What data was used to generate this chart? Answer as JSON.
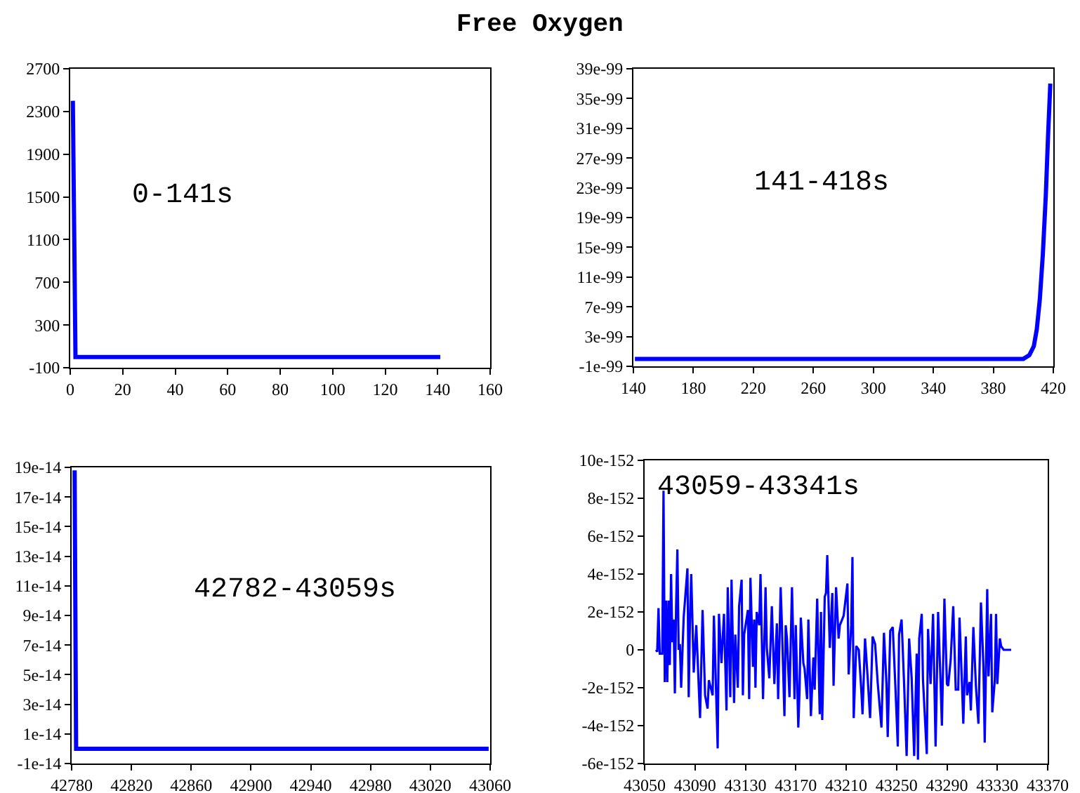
{
  "chart_data": [
    {
      "type": "line",
      "title": "Free Oxygen",
      "annotations": [
        "0-141s"
      ],
      "x": [
        1,
        2,
        141
      ],
      "series": [
        {
          "color": "#0000ff",
          "values": [
            2400,
            0,
            0
          ]
        }
      ],
      "xlim": [
        0,
        160
      ],
      "xticks": [
        0,
        20,
        40,
        60,
        80,
        100,
        120,
        140,
        160
      ],
      "ylim": [
        -100,
        2700
      ],
      "yticks": [
        -100,
        300,
        700,
        1100,
        1500,
        1900,
        2300,
        2700
      ]
    },
    {
      "type": "line",
      "annotations": [
        "141-418s"
      ],
      "x": [
        141,
        400,
        404,
        407,
        409,
        411,
        413,
        415,
        416.5,
        418
      ],
      "series": [
        {
          "color": "#0000ff",
          "values": [
            0,
            0,
            5e-100,
            1.7e-99,
            4e-99,
            8e-99,
            1.4e-98,
            2.2e-98,
            3e-98,
            3.7e-98
          ]
        }
      ],
      "xlim": [
        140,
        420
      ],
      "xticks": [
        140,
        180,
        220,
        260,
        300,
        340,
        380,
        420
      ],
      "ylim": [
        -1e-99,
        3.9e-98
      ],
      "yticks": [
        {
          "value": -1e-99,
          "label": "-1e-99"
        },
        {
          "value": 3e-99,
          "label": "3e-99"
        },
        {
          "value": 7e-99,
          "label": "7e-99"
        },
        {
          "value": 1.1e-98,
          "label": "11e-99"
        },
        {
          "value": 1.5e-98,
          "label": "15e-99"
        },
        {
          "value": 1.9e-98,
          "label": "19e-99"
        },
        {
          "value": 2.3e-98,
          "label": "23e-99"
        },
        {
          "value": 2.7e-98,
          "label": "27e-99"
        },
        {
          "value": 3.1e-98,
          "label": "31e-99"
        },
        {
          "value": 3.5e-98,
          "label": "35e-99"
        },
        {
          "value": 3.9e-98,
          "label": "39e-99"
        }
      ]
    },
    {
      "type": "line",
      "annotations": [
        "42782-43059s"
      ],
      "x": [
        42782,
        42783,
        43059
      ],
      "series": [
        {
          "color": "#0000ff",
          "values": [
            1.88e-13,
            0,
            0
          ]
        }
      ],
      "xlim": [
        42780,
        43060
      ],
      "xticks": [
        42780,
        42820,
        42860,
        42900,
        42940,
        42980,
        43020,
        43060
      ],
      "ylim": [
        -1e-14,
        1.9e-13
      ],
      "yticks": [
        {
          "value": -1e-14,
          "label": "-1e-14"
        },
        {
          "value": 1e-14,
          "label": "1e-14"
        },
        {
          "value": 3e-14,
          "label": "3e-14"
        },
        {
          "value": 5e-14,
          "label": "5e-14"
        },
        {
          "value": 7e-14,
          "label": "7e-14"
        },
        {
          "value": 9e-14,
          "label": "9e-14"
        },
        {
          "value": 1.1e-13,
          "label": "11e-14"
        },
        {
          "value": 1.3e-13,
          "label": "13e-14"
        },
        {
          "value": 1.5e-13,
          "label": "15e-14"
        },
        {
          "value": 1.7e-13,
          "label": "17e-14"
        },
        {
          "value": 1.9e-13,
          "label": "19e-14"
        }
      ]
    },
    {
      "type": "line",
      "annotations": [
        "43059-43341s"
      ],
      "x": [
        43059,
        43060,
        43061,
        43062,
        43064,
        43065,
        43066,
        43067,
        43068,
        43069,
        43070,
        43071,
        43072,
        43073,
        43074,
        43075,
        43076,
        43077,
        43078,
        43079,
        43081,
        43084,
        43085,
        43086,
        43087,
        43089,
        43091,
        43093,
        43094,
        43096,
        43098,
        43100,
        43101,
        43104,
        43105,
        43107,
        43108,
        43109,
        43111,
        43113,
        43115,
        43116,
        43118,
        43119,
        43121,
        43122,
        43124,
        43125,
        43127,
        43128,
        43129,
        43132,
        43133,
        43134,
        43136,
        43137,
        43138,
        43139,
        43141,
        43142,
        43144,
        43146,
        43147,
        43149,
        43151,
        43153,
        43155,
        43156,
        43158,
        43159,
        43161,
        43162,
        43163,
        43165,
        43167,
        43169,
        43170,
        43172,
        43173,
        43174,
        43176,
        43177,
        43179,
        43180,
        43182,
        43184,
        43185,
        43187,
        43189,
        43190,
        43191,
        43193,
        43194,
        43195,
        43197,
        43199,
        43200,
        43202,
        43204,
        43205,
        43208,
        43211,
        43212,
        43214,
        43215,
        43216,
        43218,
        43220,
        43222,
        43223,
        43225,
        43227,
        43229,
        43231,
        43233,
        43235,
        43238,
        43240,
        43242,
        43243,
        43245,
        43247,
        43249,
        43251,
        43252,
        43254,
        43256,
        43258,
        43260,
        43262,
        43264,
        43266,
        43267,
        43268,
        43270,
        43271,
        43274,
        43275,
        43277,
        43279,
        43281,
        43283,
        43285,
        43286,
        43288,
        43290,
        43291,
        43293,
        43295,
        43297,
        43299,
        43300,
        43302,
        43303,
        43305,
        43306,
        43308,
        43309,
        43311,
        43313,
        43315,
        43317,
        43319,
        43320,
        43322,
        43323,
        43325,
        43326,
        43328,
        43329,
        43330,
        43332,
        43333,
        43335,
        43341
      ],
      "series": [
        {
          "color": "#0000ff",
          "values": [
            0,
            -1e-153,
            2.2e-152,
            -2e-153,
            -2e-153,
            8.4e-152,
            -1.7e-152,
            2.6e-152,
            -1.7e-152,
            2.6e-152,
            -8e-153,
            4e-152,
            4e-153,
            1.6e-152,
            -2.3e-152,
            2.3e-152,
            5.3e-152,
            0,
            3e-153,
            -2e-152,
            1.7e-152,
            4.3e-152,
            -2.5e-152,
            1.6e-152,
            4e-152,
            -1.2e-152,
            1.3e-152,
            -2e-152,
            -3.6e-152,
            2.1e-152,
            -2.4e-152,
            -3.1e-152,
            -1.6e-152,
            -2.4e-152,
            1.8e-152,
            -2.8e-152,
            -5.2e-152,
            1.9e-152,
            -7e-153,
            1.9e-152,
            -3.2e-152,
            3.3e-152,
            -2.5e-152,
            3.7e-152,
            -2.8e-152,
            8e-153,
            -2e-152,
            2.3e-152,
            3.7e-152,
            -2.4e-152,
            8e-153,
            2.1e-152,
            -2.6e-152,
            3.8e-152,
            -9e-153,
            1.6e-152,
            -2e-152,
            2e-152,
            1.3e-152,
            4e-152,
            -2.6e-152,
            3.3e-152,
            1e-153,
            -1.5e-152,
            2.3e-152,
            -1.8e-152,
            1.4e-152,
            -2.6e-152,
            3.3e-152,
            1.3e-152,
            -3.5e-152,
            1.3e-152,
            6e-153,
            -2.5e-152,
            3.3e-152,
            -2.6e-152,
            1.3e-152,
            -4.1e-152,
            -2.1e-152,
            1.7e-152,
            -7e-153,
            -1e-152,
            -2.6e-152,
            1.6e-152,
            -3.5e-152,
            -4e-153,
            -2.1e-152,
            2.7e-152,
            -3.4e-152,
            2e-152,
            -3.7e-152,
            2.8e-152,
            3e-152,
            5e-152,
            1e-153,
            3e-152,
            -1.9e-152,
            3.3e-152,
            6e-153,
            1.3e-152,
            1.8e-152,
            3.5e-152,
            -1.3e-152,
            1.3e-152,
            4.9e-152,
            -3.6e-152,
            2e-153,
            0,
            -2.1e-152,
            -3.4e-152,
            6e-153,
            -1.4e-152,
            -3.6e-152,
            7e-153,
            3e-153,
            -1.7e-152,
            -4.1e-152,
            9e-153,
            -1.8e-152,
            -4.6e-152,
            1e-152,
            1.2e-152,
            -1.8e-152,
            -5.1e-152,
            8e-153,
            1.6e-152,
            -1.8e-152,
            -5.6e-152,
            6e-153,
            -1.5e-152,
            -5.6e-152,
            -2e-153,
            -5.8e-152,
            6e-153,
            1.9e-152,
            -1.6e-152,
            -5.5e-152,
            1.1e-152,
            -1.8e-152,
            1.9e-152,
            -5.1e-152,
            2e-152,
            -1.8e-152,
            -4e-152,
            2.7e-152,
            -1.8e-152,
            -1.9e-152,
            -5e-153,
            2.3e-152,
            -2.1e-152,
            -2.1e-152,
            1.7e-152,
            -1.9e-152,
            -3.9e-152,
            7e-153,
            -2.4e-152,
            -1.7e-152,
            -3.2e-152,
            1.2e-152,
            -1.9e-152,
            -3.9e-152,
            2.5e-152,
            -9e-153,
            -4.9e-152,
            3.2e-152,
            -1.4e-152,
            1.9e-152,
            -3.3e-152,
            -1.6e-152,
            1.9e-152,
            -1.8e-152,
            6e-153,
            2e-153,
            0,
            0
          ]
        }
      ],
      "xlim": [
        43050,
        43370
      ],
      "xticks": [
        43050,
        43090,
        43130,
        43170,
        43210,
        43250,
        43290,
        43330,
        43370
      ],
      "ylim": [
        -6e-152,
        1e-151
      ],
      "yticks": [
        {
          "value": -6e-152,
          "label": "-6e-152"
        },
        {
          "value": -4e-152,
          "label": "-4e-152"
        },
        {
          "value": -2e-152,
          "label": "-2e-152"
        },
        0,
        {
          "value": 2e-152,
          "label": "2e-152"
        },
        {
          "value": 4e-152,
          "label": "4e-152"
        },
        {
          "value": 6e-152,
          "label": "6e-152"
        },
        {
          "value": 8e-152,
          "label": "8e-152"
        },
        {
          "value": 1e-151,
          "label": "10e-152"
        }
      ]
    }
  ]
}
